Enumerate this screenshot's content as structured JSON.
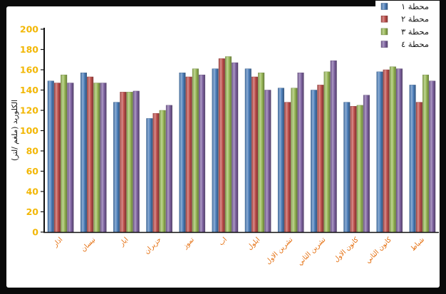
{
  "chart_data": {
    "type": "bar",
    "categories": [
      "اذار",
      "نيسان",
      "ايار",
      "حزيران",
      "تموز",
      "اب",
      "ايلول",
      "تشرين الاول",
      "تشرين الثاني",
      "كانون الاول",
      "كانون الثاني",
      "شباط"
    ],
    "series": [
      {
        "name": "محطة ١",
        "color": "#4F81BD",
        "values": [
          149,
          157,
          128,
          112,
          157,
          161,
          161,
          142,
          140,
          128,
          158,
          145
        ]
      },
      {
        "name": "محطة ٢",
        "color": "#C0504D",
        "values": [
          147,
          153,
          138,
          117,
          153,
          171,
          153,
          128,
          145,
          124,
          160,
          128
        ]
      },
      {
        "name": "محطة ٣",
        "color": "#9BBB59",
        "values": [
          155,
          147,
          138,
          120,
          161,
          173,
          157,
          142,
          158,
          125,
          163,
          155
        ]
      },
      {
        "name": "محطة ٤",
        "color": "#8064A2",
        "values": [
          147,
          147,
          139,
          125,
          155,
          167,
          140,
          157,
          169,
          135,
          161,
          149
        ]
      }
    ],
    "title": "",
    "xlabel": "",
    "ylabel": "الكلوريد (ملغم /لتر)",
    "ylim": [
      0,
      200
    ],
    "yticks": [
      0,
      20,
      40,
      60,
      80,
      100,
      120,
      140,
      160,
      180,
      200
    ],
    "grid": false,
    "legend": "top-right"
  },
  "colors": {
    "frame": "#0a0a0a",
    "plot_background": "#FFFFFF",
    "tick_label": "#F2B705",
    "category_label": "#E46C0A",
    "axis_line": "#111111"
  }
}
